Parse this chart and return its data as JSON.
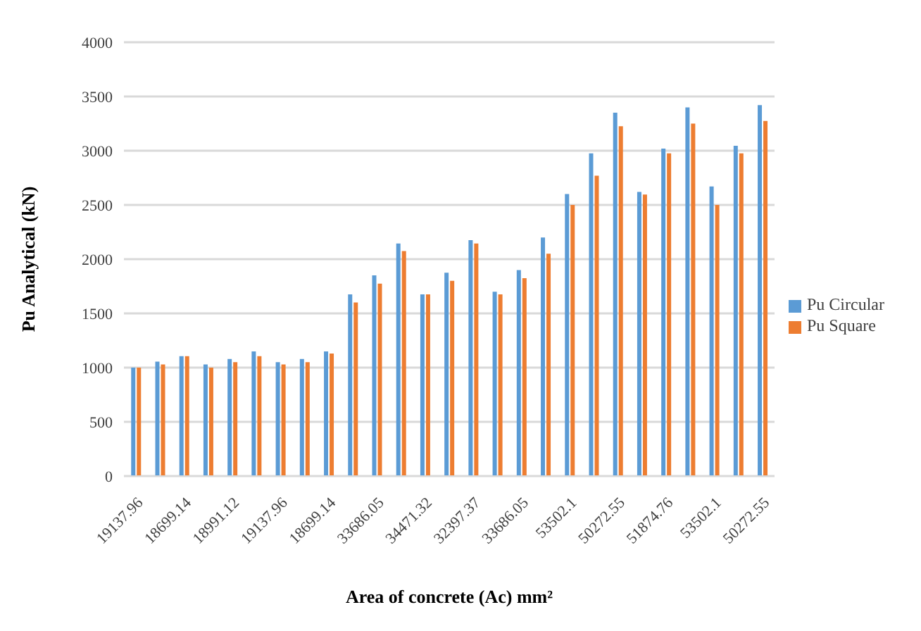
{
  "chart_data": {
    "type": "bar",
    "xlabel": "Area of concrete (Ac) mm²",
    "ylabel": "Pu Analytical (kN)",
    "categories": [
      "19137.96",
      null,
      "18699.14",
      null,
      "18991.12",
      null,
      "19137.96",
      null,
      "18699.14",
      null,
      "33686.05",
      null,
      "34471.32",
      null,
      "32397.37",
      null,
      "33686.05",
      null,
      "53502.1",
      null,
      "50272.55",
      null,
      "51874.76",
      null,
      "53502.1",
      null,
      "50272.55"
    ],
    "series": [
      {
        "name": "Pu Circular",
        "color": "#5b9bd5",
        "values": [
          1000,
          1055,
          1105,
          1030,
          1080,
          1150,
          1050,
          1080,
          1150,
          1675,
          1850,
          2145,
          1675,
          1875,
          2175,
          1700,
          1900,
          2200,
          2600,
          2975,
          3350,
          2620,
          3020,
          3400,
          2670,
          3045,
          3420
        ]
      },
      {
        "name": "Pu Square",
        "color": "#ed7d31",
        "values": [
          1000,
          1030,
          1105,
          1000,
          1050,
          1105,
          1030,
          1050,
          1130,
          1600,
          1775,
          2075,
          1675,
          1800,
          2145,
          1675,
          1825,
          2050,
          2500,
          2770,
          3225,
          2595,
          2975,
          3250,
          2500,
          2975,
          3275
        ]
      }
    ],
    "ylim": [
      0,
      4000
    ],
    "yticks": [
      0,
      500,
      1000,
      1500,
      2000,
      2500,
      3000,
      3500,
      4000
    ],
    "grid": "y",
    "legend": "right"
  }
}
